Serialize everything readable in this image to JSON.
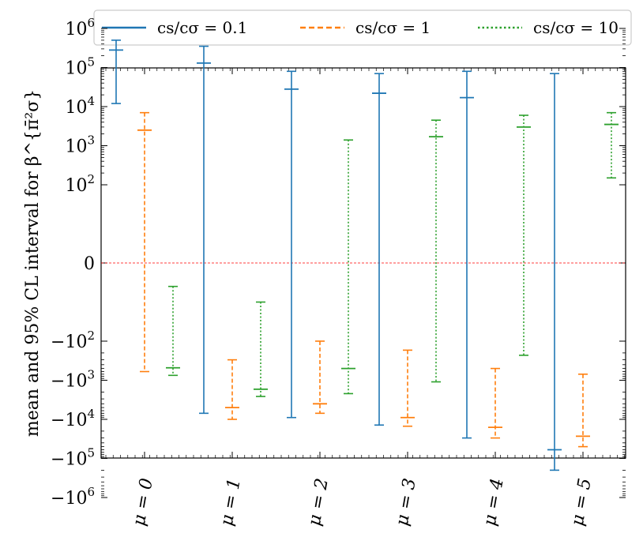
{
  "chart_data": {
    "type": "errorbar",
    "ylabel": "mean and 95% CL interval for β^{π̄²σ}",
    "yscale": "symlog",
    "zero_line": {
      "value": 0,
      "color": "#ff0000"
    },
    "categories": [
      "μ = 0",
      "μ = 1",
      "μ = 2",
      "μ = 3",
      "μ = 4",
      "μ = 5"
    ],
    "y_ticks": [
      {
        "value": 1000000,
        "label": "10",
        "exp": "6"
      },
      {
        "value": 100000,
        "label": "10",
        "exp": "5"
      },
      {
        "value": 10000,
        "label": "10",
        "exp": "4"
      },
      {
        "value": 1000,
        "label": "10",
        "exp": "3"
      },
      {
        "value": 100,
        "label": "10",
        "exp": "2"
      },
      {
        "value": 0,
        "label": "0",
        "exp": ""
      },
      {
        "value": -100,
        "label": "−10",
        "exp": "2"
      },
      {
        "value": -1000,
        "label": "−10",
        "exp": "3"
      },
      {
        "value": -10000,
        "label": "−10",
        "exp": "4"
      },
      {
        "value": -100000,
        "label": "−10",
        "exp": "5"
      },
      {
        "value": -1000000,
        "label": "−10",
        "exp": "6"
      }
    ],
    "legend": {
      "placement": "top"
    },
    "series": [
      {
        "name": "c_s/c_σ = 0.1",
        "legend_label": "cs/cσ = 0.1",
        "color": "#1f77b4",
        "dash": "solid",
        "points": [
          {
            "mean": 280000,
            "low": 12000,
            "high": 500000
          },
          {
            "mean": 130000,
            "low": -7000,
            "high": 350000
          },
          {
            "mean": 28000,
            "low": -9000,
            "high": 80000
          },
          {
            "mean": 22000,
            "low": -14000,
            "high": 70000
          },
          {
            "mean": 17000,
            "low": -30000,
            "high": 80000
          },
          {
            "mean": -60000,
            "low": -200000,
            "high": 70000
          }
        ]
      },
      {
        "name": "c_s/c_σ = 1",
        "legend_label": "cs/cσ = 1",
        "color": "#ff7f0e",
        "dash": "dashed",
        "points": [
          {
            "mean": 2500,
            "low": -600,
            "high": 7000
          },
          {
            "mean": -5000,
            "low": -10000,
            "high": -300
          },
          {
            "mean": -4000,
            "low": -7000,
            "high": -100
          },
          {
            "mean": -9000,
            "low": -15000,
            "high": -170
          },
          {
            "mean": -16000,
            "low": -30000,
            "high": -500
          },
          {
            "mean": -27000,
            "low": -50000,
            "high": -700
          }
        ]
      },
      {
        "name": "c_s/c_σ = 10",
        "legend_label": "cs/cσ = 10",
        "color": "#2ca02c",
        "dash": "dotted",
        "points": [
          {
            "mean": -480,
            "low": -750,
            "high": -30
          },
          {
            "mean": -1700,
            "low": -2600,
            "high": -50
          },
          {
            "mean": -500,
            "low": -2200,
            "high": 1400
          },
          {
            "mean": 1700,
            "low": -1100,
            "high": 4500
          },
          {
            "mean": 3000,
            "low": -230,
            "high": 6000
          },
          {
            "mean": 3500,
            "low": 150,
            "high": 7000
          }
        ]
      }
    ]
  }
}
